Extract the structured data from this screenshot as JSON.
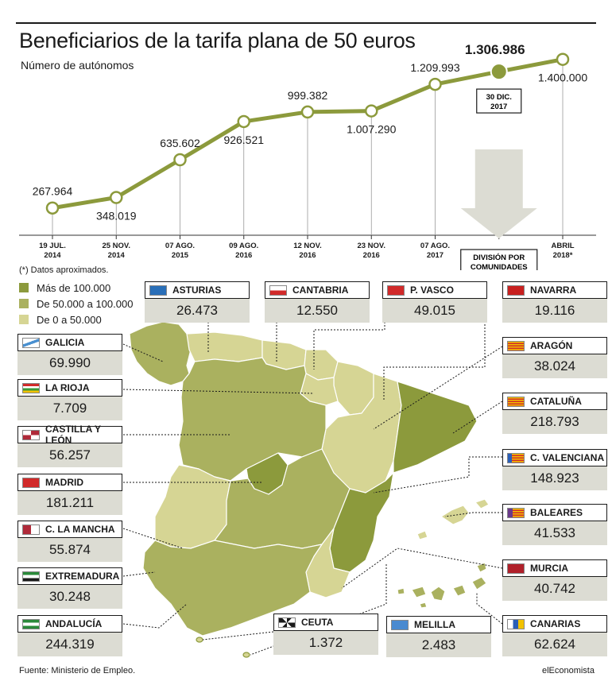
{
  "title": "Beneficiarios de la tarifa plana de 50 euros",
  "subtitle": "Número de autónomos",
  "note": "(*) Datos aproximados.",
  "callout": {
    "date_line1": "30 DIC.",
    "date_line2": "2017",
    "arrow_label_line1": "DIVISIÓN POR",
    "arrow_label_line2": "COMUNIDADES"
  },
  "legend": [
    {
      "label": "Más de 100.000",
      "color": "#8c9a3c"
    },
    {
      "label": "De 50.000 a 100.000",
      "color": "#aab15f"
    },
    {
      "label": "De 0 a 50.000",
      "color": "#d6d594"
    }
  ],
  "chart_data": {
    "type": "line",
    "categories": [
      [
        "19 JUL.",
        "2014"
      ],
      [
        "25 NOV.",
        "2014"
      ],
      [
        "07 AGO.",
        "2015"
      ],
      [
        "09 AGO.",
        "2016"
      ],
      [
        "12 NOV.",
        "2016"
      ],
      [
        "23 NOV.",
        "2016"
      ],
      [
        "07 AGO.",
        "2017"
      ],
      [
        "30 DIC.",
        "2017"
      ],
      [
        "ABRIL",
        "2018*"
      ]
    ],
    "values": [
      267964,
      348019,
      635602,
      926521,
      999382,
      1007290,
      1209993,
      1306986,
      1400000
    ],
    "value_labels": [
      "267.964",
      "348.019",
      "635.602",
      "926.521",
      "999.382",
      "1.007.290",
      "1.209.993",
      "1.306.986",
      "1.400.000"
    ],
    "highlight_index": 7,
    "color": "#8c9a3c"
  },
  "regions": [
    {
      "name": "ASTURIAS",
      "value": "26.473"
    },
    {
      "name": "CANTABRIA",
      "value": "12.550"
    },
    {
      "name": "P. VASCO",
      "value": "49.015"
    },
    {
      "name": "NAVARRA",
      "value": "19.116"
    },
    {
      "name": "GALICIA",
      "value": "69.990"
    },
    {
      "name": "ARAGÓN",
      "value": "38.024"
    },
    {
      "name": "LA RIOJA",
      "value": "7.709"
    },
    {
      "name": "CATALUÑA",
      "value": "218.793"
    },
    {
      "name": "CASTILLA Y LEÓN",
      "value": "56.257"
    },
    {
      "name": "C. VALENCIANA",
      "value": "148.923"
    },
    {
      "name": "MADRID",
      "value": "181.211"
    },
    {
      "name": "BALEARES",
      "value": "41.533"
    },
    {
      "name": "C. LA MANCHA",
      "value": "55.874"
    },
    {
      "name": "MURCIA",
      "value": "40.742"
    },
    {
      "name": "EXTREMADURA",
      "value": "30.248"
    },
    {
      "name": "CEUTA",
      "value": "1.372"
    },
    {
      "name": "MELILLA",
      "value": "2.483"
    },
    {
      "name": "ANDALUCÍA",
      "value": "244.319"
    },
    {
      "name": "CANARIAS",
      "value": "62.624"
    }
  ],
  "footer": {
    "source": "Fuente: Ministerio de Empleo.",
    "brand": "elEconomista"
  }
}
